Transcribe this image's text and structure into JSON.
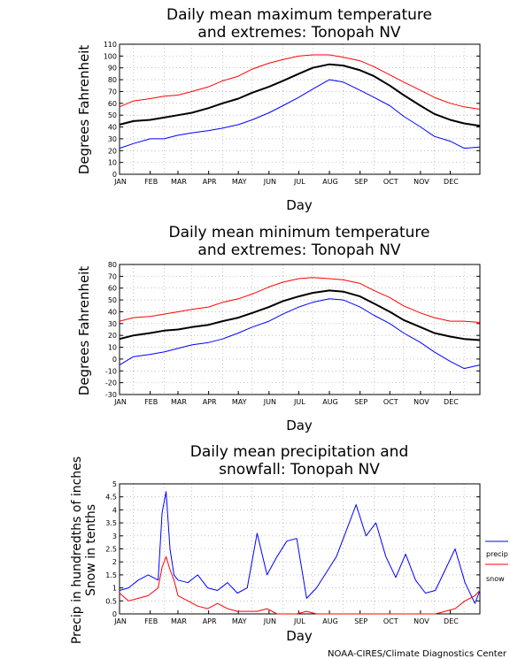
{
  "months": [
    "JAN",
    "FEB",
    "MAR",
    "APR",
    "MAY",
    "JUN",
    "JUL",
    "AUG",
    "SEP",
    "OCT",
    "NOV",
    "DEC"
  ],
  "credit": "NOAA-CIRES/Climate Diagnostics Center",
  "colors": {
    "mean": "#000000",
    "high": "#ff0000",
    "low": "#0000ff",
    "precip": "#0000ff",
    "snow": "#ff0000",
    "grid": "#9a9a9a"
  },
  "chart_data": [
    {
      "type": "line",
      "title_line1": "Daily mean maximum temperature",
      "title_line2": "and extremes: Tonopah NV",
      "xlabel": "Day",
      "ylabel": "Degrees Fahrenheit",
      "ylim": [
        0,
        110
      ],
      "yticks": [
        0,
        10,
        20,
        30,
        40,
        50,
        60,
        70,
        80,
        90,
        100,
        110
      ],
      "x": [
        1,
        15,
        32,
        46,
        60,
        74,
        91,
        105,
        121,
        135,
        152,
        166,
        182,
        196,
        213,
        227,
        244,
        258,
        274,
        288,
        305,
        319,
        335,
        349,
        365
      ],
      "series": [
        {
          "role": "mean",
          "values": [
            42,
            45,
            46,
            48,
            50,
            52,
            56,
            60,
            64,
            69,
            74,
            79,
            85,
            90,
            93,
            92,
            88,
            83,
            75,
            67,
            58,
            51,
            46,
            43,
            41
          ]
        },
        {
          "role": "high",
          "values": [
            57,
            62,
            64,
            66,
            67,
            70,
            74,
            79,
            83,
            89,
            94,
            97,
            100,
            101,
            101,
            99,
            96,
            91,
            84,
            78,
            71,
            65,
            60,
            57,
            55
          ]
        },
        {
          "role": "low",
          "values": [
            22,
            26,
            30,
            30,
            33,
            35,
            37,
            39,
            42,
            46,
            52,
            58,
            65,
            72,
            80,
            78,
            71,
            65,
            58,
            49,
            40,
            32,
            28,
            22,
            23
          ]
        }
      ]
    },
    {
      "type": "line",
      "title_line1": "Daily mean minimum temperature",
      "title_line2": "and extremes: Tonopah NV",
      "xlabel": "Day",
      "ylabel": "Degrees Fahrenheit",
      "ylim": [
        -30,
        80
      ],
      "yticks": [
        -30,
        -20,
        -10,
        0,
        10,
        20,
        30,
        40,
        50,
        60,
        70,
        80
      ],
      "x": [
        1,
        15,
        32,
        46,
        60,
        74,
        91,
        105,
        121,
        135,
        152,
        166,
        182,
        196,
        213,
        227,
        244,
        258,
        274,
        288,
        305,
        319,
        335,
        349,
        365
      ],
      "series": [
        {
          "role": "mean",
          "values": [
            17,
            20,
            22,
            24,
            25,
            27,
            29,
            32,
            35,
            39,
            44,
            49,
            53,
            56,
            58,
            57,
            53,
            47,
            40,
            33,
            27,
            22,
            19,
            17,
            16
          ]
        },
        {
          "role": "high",
          "values": [
            32,
            35,
            36,
            38,
            40,
            42,
            44,
            48,
            51,
            55,
            61,
            65,
            68,
            69,
            68,
            67,
            64,
            58,
            52,
            45,
            39,
            35,
            32,
            32,
            31
          ]
        },
        {
          "role": "low",
          "values": [
            -5,
            2,
            4,
            6,
            9,
            12,
            14,
            17,
            22,
            27,
            32,
            38,
            44,
            48,
            51,
            50,
            44,
            37,
            30,
            22,
            14,
            6,
            -2,
            -8,
            -5
          ]
        }
      ]
    },
    {
      "type": "line",
      "title_line1": "Daily mean precipitation and",
      "title_line2": "snowfall: Tonopah NV",
      "xlabel": "Day",
      "ylabel_line1": "Precip in hundredths of inches",
      "ylabel_line2": "Snow in tenths",
      "ylim": [
        0,
        5
      ],
      "yticks": [
        0,
        0.5,
        1,
        1.5,
        2,
        2.5,
        3,
        3.5,
        4,
        4.5,
        5
      ],
      "ytick_labels": [
        "0",
        "0.5",
        "1",
        "1.5",
        "2",
        "2.5",
        "3",
        "3.5",
        "4",
        "4.5",
        "5"
      ],
      "legend": [
        "precip",
        "snow"
      ],
      "legend_position": "right",
      "x": [
        1,
        10,
        20,
        30,
        40,
        44,
        48,
        52,
        56,
        60,
        70,
        80,
        90,
        100,
        110,
        120,
        130,
        140,
        150,
        160,
        170,
        180,
        190,
        200,
        210,
        220,
        230,
        240,
        250,
        260,
        270,
        280,
        290,
        300,
        310,
        320,
        330,
        340,
        350,
        360,
        365
      ],
      "series": [
        {
          "name": "precip",
          "values": [
            0.9,
            1.0,
            1.3,
            1.5,
            1.3,
            3.9,
            4.7,
            2.5,
            1.5,
            1.3,
            1.2,
            1.5,
            1.0,
            0.9,
            1.2,
            0.8,
            1.0,
            3.1,
            1.5,
            2.2,
            2.8,
            2.9,
            0.6,
            1.0,
            1.6,
            2.2,
            3.2,
            4.2,
            3.0,
            3.5,
            2.2,
            1.4,
            2.3,
            1.3,
            0.8,
            0.9,
            1.7,
            2.5,
            1.2,
            0.4,
            0.9
          ]
        },
        {
          "name": "snow",
          "values": [
            0.8,
            0.5,
            0.6,
            0.7,
            1.0,
            1.8,
            2.2,
            1.7,
            1.3,
            0.7,
            0.5,
            0.3,
            0.2,
            0.4,
            0.2,
            0.1,
            0.1,
            0.1,
            0.2,
            0.0,
            0.0,
            0.0,
            0.1,
            0.0,
            0.0,
            0.0,
            0.0,
            0.0,
            0.0,
            0.0,
            0.0,
            0.0,
            0.0,
            0.0,
            0.0,
            0.0,
            0.1,
            0.2,
            0.5,
            0.7,
            0.9
          ]
        }
      ]
    }
  ]
}
